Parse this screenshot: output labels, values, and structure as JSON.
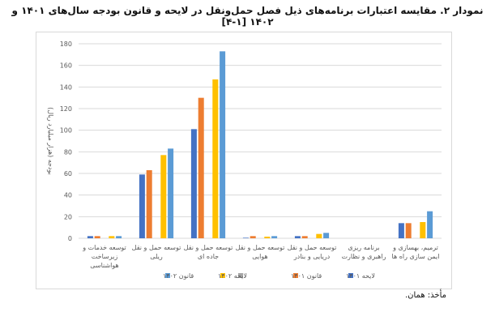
{
  "title": "نمودار ۲. مقایسه اعتبارات برنامه‌های ذیل فصل حمل‌ونقل در لایحه و قانون بودجه سال‌های ۱۴۰۱ و ۱۴۰۲ [۱-۴]",
  "source": "مأخذ: همان.",
  "chart_data": {
    "type": "bar",
    "ylabel": "بودجه (هزار میلیارد ریال)",
    "ylim": [
      0,
      180
    ],
    "yticks": [
      0,
      20,
      40,
      60,
      80,
      100,
      120,
      140,
      160,
      180
    ],
    "grid": true,
    "legend_position": "bottom",
    "categories": [
      [
        "توسعه خدمات و",
        "زیرساخت",
        "هواشناسی"
      ],
      [
        "توسعه حمل و نقل",
        "ریلی"
      ],
      [
        "توسعه حمل و نقل",
        "جاده ای"
      ],
      [
        "توسعه حمل و نقل",
        "هوایی"
      ],
      [
        "توسعه حمل و نقل",
        "دریایی و بنادر"
      ],
      [
        "برنامه ریزی",
        "راهبری و نظارت"
      ],
      [
        "ترمیم، بهسازی و",
        "ایمن سازی راه ها"
      ]
    ],
    "series": [
      {
        "name": "لایحه ۱۴۰۱",
        "color": "#4472c4",
        "values": [
          2,
          59,
          101,
          0.5,
          2,
          0,
          14
        ]
      },
      {
        "name": "قانون ۱۴۰۱",
        "color": "#ed7d31",
        "values": [
          2,
          63,
          130,
          2,
          2,
          0,
          14
        ]
      },
      {
        "name": ".",
        "color": "#a5a5a5",
        "values": [
          0,
          0,
          0,
          0,
          0,
          0,
          0
        ]
      },
      {
        "name": "لایحه ۱۴۰۲",
        "color": "#ffc000",
        "values": [
          2,
          77,
          147,
          1.5,
          4,
          0,
          15
        ]
      },
      {
        "name": "قانون ۱۴۰۲",
        "color": "#5b9bd5",
        "values": [
          2,
          83,
          173,
          2,
          5,
          0,
          25
        ]
      }
    ]
  }
}
